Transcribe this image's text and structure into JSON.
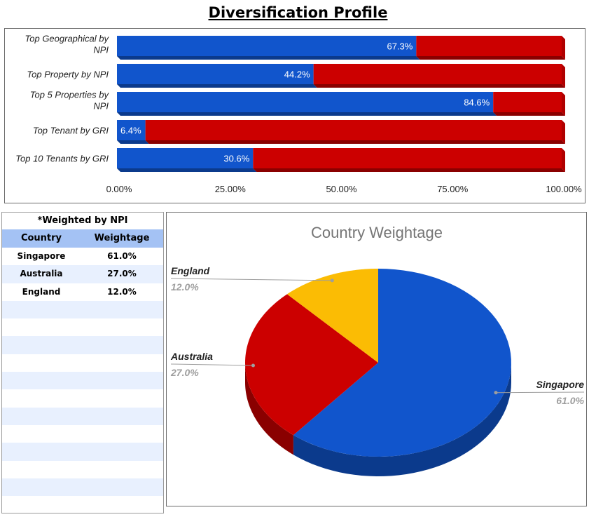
{
  "page": {
    "title": "Diversification Profile"
  },
  "colors": {
    "blue": "#1155cc",
    "blue_dark": "#0b3a8c",
    "red": "#cc0000",
    "red_dark": "#8a0000",
    "yellow": "#fbbc04",
    "table_header": "#a4c2f4",
    "table_stripe": "#e8f0fe"
  },
  "table": {
    "caption": "*Weighted by NPI",
    "headers": [
      "Country",
      "Weightage"
    ],
    "rows": [
      [
        "Singapore",
        "61.0%"
      ],
      [
        "Australia",
        "27.0%"
      ],
      [
        "England",
        "12.0%"
      ]
    ],
    "empty_rows": 13
  },
  "chart_data": [
    {
      "type": "bar",
      "orientation": "horizontal",
      "stacked": true,
      "title": "",
      "categories": [
        "Top Geographical by NPI",
        "Top Property by NPI",
        "Top 5 Properties by NPI",
        "Top Tenant by GRI",
        "Top 10 Tenants by GRI"
      ],
      "category_lines": [
        [
          "Top Geographical by",
          "NPI"
        ],
        [
          "Top Property by NPI"
        ],
        [
          "Top 5 Properties by",
          "NPI"
        ],
        [
          "Top Tenant by GRI"
        ],
        [
          "Top 10 Tenants by GRI"
        ]
      ],
      "series": [
        {
          "values": [
            67.3,
            44.2,
            84.6,
            6.4,
            30.6
          ],
          "labels": [
            "67.3%",
            "44.2%",
            "84.6%",
            "6.4%",
            "30.6%"
          ]
        },
        {
          "values": [
            32.7,
            55.8,
            15.4,
            93.6,
            69.4
          ]
        }
      ],
      "xlim": [
        0,
        100
      ],
      "xticks": [
        "0.00%",
        "25.00%",
        "50.00%",
        "75.00%",
        "100.00%"
      ],
      "grid": false,
      "legend": "none"
    },
    {
      "type": "pie",
      "three_d": true,
      "title": "Country Weightage",
      "labels": [
        "Singapore",
        "Australia",
        "England"
      ],
      "values": [
        61.0,
        27.0,
        12.0
      ],
      "value_labels": [
        "61.0%",
        "27.0%",
        "12.0%"
      ],
      "legend": "labeled"
    }
  ]
}
